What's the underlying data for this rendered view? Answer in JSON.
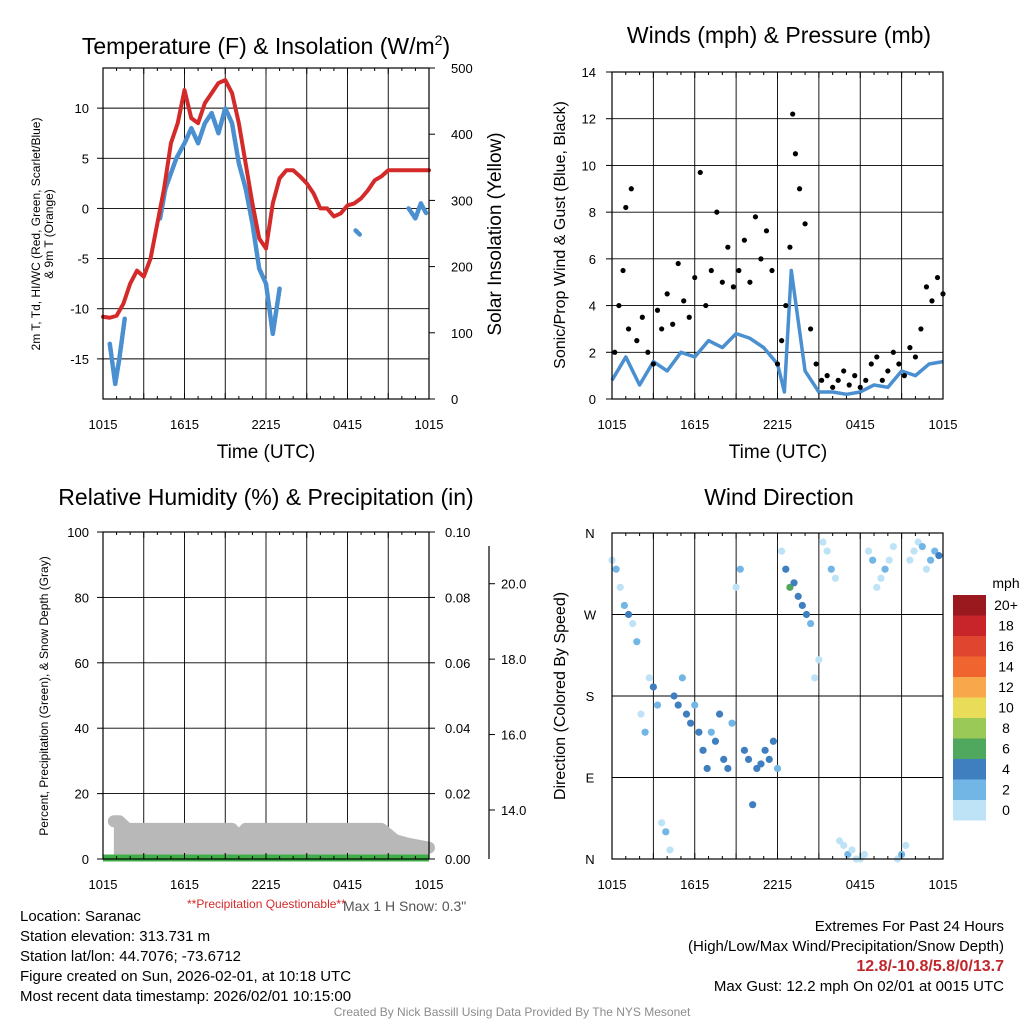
{
  "colors": {
    "temp": "#d42a2a",
    "wind": "#4a8fd0",
    "gust": "#000000",
    "precip": "#3fae49",
    "snow": "#b8b8b8",
    "grid": "#000000"
  },
  "panels": {
    "temp": {
      "title_main": "Temperature (F) & Insolation (W/m",
      "title_sup": "2",
      "title_end": ")",
      "ylabel_line1": "2m T, Td, HI/WC (Red, Green, Scarlet/Blue)",
      "ylabel_line2": "& 9m T (Orange)",
      "y2label": "Solar Insolation (Yellow)",
      "xlabel": "Time (UTC)"
    },
    "wind": {
      "title": "Winds (mph) & Pressure (mb)",
      "ylabel": "Sonic/Prop Wind & Gust (Blue, Black)",
      "xlabel": "Time (UTC)"
    },
    "rh": {
      "title": "Relative Humidity (%) & Precipitation (in)",
      "ylabel": "Percent, Precipitation (Green), & Snow Depth (Gray)",
      "note_questionable": "**Precipitation Questionable**",
      "note_snow": "Max 1 H Snow: 0.3\""
    },
    "dir": {
      "title": "Wind Direction",
      "ylabel": "Direction (Colored By Speed)",
      "colorbar_title": "mph",
      "colorbar_labels": [
        "20+",
        "18",
        "16",
        "14",
        "12",
        "10",
        "8",
        "6",
        "4",
        "2",
        "0"
      ],
      "colorbar_colors": [
        "#99191f",
        "#c8252b",
        "#e0452f",
        "#f0652f",
        "#f8a84a",
        "#e8dc58",
        "#9bc957",
        "#4fa85e",
        "#3f7fbf",
        "#72b6e6",
        "#bfe3f6"
      ]
    }
  },
  "info": {
    "location": "Location: Saranac",
    "elevation": "Station elevation: 313.731 m",
    "latlon": "Station lat/lon: 44.7076; -73.6712",
    "created": "Figure created on Sun, 2026-02-01, at 10:18 UTC",
    "recent": "Most recent data timestamp: 2026/02/01 10:15:00",
    "extremes_title": "Extremes For Past 24 Hours",
    "extremes_desc": "(High/Low/Max Wind/Precipitation/Snow Depth)",
    "extremes_values": "12.8/-10.8/5.8/0/13.7",
    "max_gust": "Max Gust: 12.2 mph On 02/01 at 0015 UTC",
    "credit": "Created By Nick Bassill Using Data Provided By The NYS Mesonet"
  },
  "chart_data": [
    {
      "type": "line",
      "title": "Temperature (F) & Insolation (W/m2)",
      "xlabel": "Time (UTC)",
      "xticks": [
        "1015",
        "1615",
        "2215",
        "0415",
        "1015"
      ],
      "x_hours": [
        0,
        6,
        12,
        18,
        24
      ],
      "ylim": [
        -19,
        14
      ],
      "yticks": [
        -15,
        -10,
        -5,
        0,
        5,
        10
      ],
      "y2lim": [
        0,
        500
      ],
      "y2ticks": [
        0,
        100,
        200,
        300,
        400,
        500
      ],
      "series": [
        {
          "name": "2m T",
          "color": "#d42a2a",
          "x": [
            0,
            0.5,
            1,
            1.5,
            2,
            2.5,
            3,
            3.5,
            4,
            4.5,
            5,
            5.5,
            6,
            6.5,
            7,
            7.5,
            8,
            8.5,
            9,
            9.5,
            10,
            10.5,
            11,
            11.5,
            12,
            12.5,
            13,
            13.5,
            14,
            14.5,
            15,
            15.5,
            16,
            16.5,
            17,
            17.5,
            18,
            18.5,
            19,
            19.5,
            20,
            20.5,
            21,
            21.5,
            22,
            22.5,
            23,
            23.5,
            24
          ],
          "y": [
            -10.8,
            -10.9,
            -10.7,
            -9.5,
            -7.5,
            -6.2,
            -6.8,
            -5.0,
            -1.5,
            2.0,
            6.5,
            8.5,
            11.8,
            9.0,
            8.5,
            10.5,
            11.5,
            12.5,
            12.8,
            11.5,
            8.5,
            4.5,
            0.5,
            -3.0,
            -4.0,
            0.5,
            3.0,
            3.8,
            3.8,
            3.2,
            2.5,
            1.5,
            0.0,
            0.0,
            -0.8,
            -0.5,
            0.3,
            0.5,
            1.0,
            1.8,
            2.8,
            3.2,
            3.8,
            3.8,
            3.8,
            3.8,
            3.8,
            3.8,
            3.8
          ]
        },
        {
          "name": "HI/WC (Blue)",
          "color": "#4a8fd0",
          "segments": [
            {
              "x": [
                0.5,
                0.9,
                1.2,
                1.6
              ],
              "y": [
                -13.5,
                -17.5,
                -15.0,
                -11.0
              ]
            },
            {
              "x": [
                4.2,
                4.6,
                5.0,
                5.4,
                6.0,
                6.5,
                7.0,
                7.5,
                8.0,
                8.5,
                9.0,
                9.5,
                10.0,
                10.5,
                11.0,
                11.5,
                12.0,
                12.5,
                13.0
              ],
              "y": [
                -1.0,
                2.0,
                3.5,
                5.0,
                6.5,
                8.0,
                6.5,
                8.5,
                9.5,
                7.5,
                10.0,
                8.5,
                4.5,
                2.0,
                -1.5,
                -6.0,
                -7.5,
                -12.5,
                -8.0
              ]
            },
            {
              "x": [
                18.6,
                18.9
              ],
              "y": [
                -2.2,
                -2.6
              ]
            },
            {
              "x": [
                22.5,
                23.0,
                23.4,
                23.8
              ],
              "y": [
                0.0,
                -1.0,
                0.5,
                -0.5
              ]
            }
          ]
        }
      ]
    },
    {
      "type": "scatter",
      "title": "Winds (mph) & Pressure (mb)",
      "xlabel": "Time (UTC)",
      "ylabel": "Sonic/Prop Wind & Gust (Blue, Black)",
      "xticks": [
        "1015",
        "1615",
        "2215",
        "0415",
        "1015"
      ],
      "x_hours": [
        0,
        6,
        12,
        18,
        24
      ],
      "ylim": [
        0,
        14
      ],
      "yticks": [
        0,
        2,
        4,
        6,
        8,
        10,
        12,
        14
      ],
      "series": [
        {
          "name": "Wind (Blue)",
          "color": "#4a8fd0",
          "x": [
            0,
            1,
            2,
            3,
            4,
            5,
            6,
            7,
            8,
            9,
            10,
            11,
            12,
            12.5,
            13,
            14,
            15,
            16,
            17,
            18,
            19,
            20,
            21,
            22,
            23,
            24
          ],
          "y": [
            0.8,
            1.8,
            0.6,
            1.6,
            1.2,
            2.0,
            1.8,
            2.5,
            2.2,
            2.8,
            2.6,
            2.2,
            1.5,
            0.3,
            5.5,
            1.2,
            0.3,
            0.3,
            0.2,
            0.3,
            0.6,
            0.5,
            1.2,
            1.0,
            1.5,
            1.6
          ]
        },
        {
          "name": "Gust (Black)",
          "color": "#000000",
          "x": [
            0.2,
            0.5,
            0.8,
            1.0,
            1.2,
            1.4,
            1.8,
            2.2,
            2.6,
            3.0,
            3.3,
            3.6,
            4.0,
            4.4,
            4.8,
            5.2,
            5.6,
            6.0,
            6.4,
            6.8,
            7.2,
            7.6,
            8.0,
            8.4,
            8.8,
            9.2,
            9.6,
            10.0,
            10.4,
            10.8,
            11.2,
            11.6,
            12.0,
            12.3,
            12.6,
            12.9,
            13.1,
            13.3,
            13.6,
            14.0,
            14.4,
            14.8,
            15.2,
            15.6,
            16.0,
            16.4,
            16.8,
            17.2,
            17.6,
            18.0,
            18.4,
            18.8,
            19.2,
            19.6,
            20.0,
            20.4,
            20.8,
            21.2,
            21.6,
            22.0,
            22.4,
            22.8,
            23.2,
            23.6,
            24.0
          ],
          "y": [
            2.0,
            4.0,
            5.5,
            8.2,
            3.0,
            9.0,
            2.5,
            3.5,
            2.0,
            1.5,
            3.8,
            3.0,
            4.5,
            3.2,
            5.8,
            4.2,
            3.5,
            5.2,
            9.7,
            4.0,
            5.5,
            8.0,
            5.0,
            6.5,
            4.8,
            5.5,
            6.8,
            5.0,
            7.8,
            6.0,
            7.2,
            5.5,
            1.5,
            2.5,
            4.0,
            6.5,
            12.2,
            10.5,
            9.0,
            7.5,
            3.0,
            1.5,
            0.8,
            1.0,
            0.5,
            0.8,
            1.2,
            0.6,
            1.0,
            0.5,
            0.8,
            1.5,
            1.8,
            0.8,
            1.2,
            2.0,
            1.5,
            1.0,
            2.2,
            1.8,
            3.0,
            4.8,
            4.2,
            5.2,
            4.5
          ]
        }
      ]
    },
    {
      "type": "area",
      "title": "Relative Humidity (%) & Precipitation (in)",
      "xticks": [
        "1015",
        "1615",
        "2215",
        "0415",
        "1015"
      ],
      "x_hours": [
        0,
        6,
        12,
        18,
        24
      ],
      "ylim": [
        0,
        100
      ],
      "yticks": [
        0,
        20,
        40,
        60,
        80,
        100
      ],
      "y2lim": [
        0,
        0.1
      ],
      "y2ticks": [
        "0.00",
        "0.02",
        "0.04",
        "0.06",
        "0.08",
        "0.10"
      ],
      "y3ticks": [
        "14.0",
        "16.0",
        "18.0",
        "20.0"
      ],
      "series": [
        {
          "name": "Precipitation (Green)",
          "color": "#3fae49",
          "x": [
            0,
            24
          ],
          "y": [
            0.0,
            0.0
          ]
        },
        {
          "name": "Snow Depth (Gray)",
          "color": "#b8b8b8",
          "x": [
            0.8,
            1.2,
            1.8,
            2.5,
            9.5,
            10.0,
            10.5,
            11.0,
            20.5,
            21.5,
            22.5,
            24.0
          ],
          "y": [
            13.7,
            13.7,
            13.5,
            13.5,
            13.5,
            13.3,
            13.5,
            13.5,
            13.5,
            13.2,
            13.1,
            13.0
          ]
        }
      ]
    },
    {
      "type": "scatter",
      "title": "Wind Direction",
      "ylabel": "Direction (Colored By Speed)",
      "xticks": [
        "1015",
        "1615",
        "2215",
        "0415",
        "1015"
      ],
      "x_hours": [
        0,
        6,
        12,
        18,
        24
      ],
      "yticks": [
        "N",
        "E",
        "S",
        "W",
        "N"
      ],
      "ylim": [
        0,
        360
      ],
      "series": [
        {
          "name": "Direction",
          "x": [
            0,
            0.3,
            0.6,
            0.9,
            1.2,
            1.5,
            1.8,
            2.1,
            2.4,
            2.7,
            3.0,
            3.3,
            3.6,
            3.9,
            4.2,
            4.5,
            4.8,
            5.1,
            5.4,
            5.7,
            6.0,
            6.3,
            6.6,
            6.9,
            7.2,
            7.5,
            7.8,
            8.1,
            8.4,
            8.7,
            9.0,
            9.3,
            9.6,
            9.9,
            10.2,
            10.5,
            10.8,
            11.1,
            11.4,
            11.7,
            12.0,
            12.3,
            12.6,
            12.9,
            13.2,
            13.5,
            13.8,
            14.1,
            14.4,
            14.7,
            15.0,
            15.3,
            15.6,
            15.9,
            16.2,
            16.5,
            16.8,
            17.1,
            17.4,
            17.7,
            18.0,
            18.3,
            18.6,
            18.9,
            19.2,
            19.5,
            19.8,
            20.1,
            20.4,
            20.7,
            21.0,
            21.3,
            21.6,
            21.9,
            22.2,
            22.5,
            22.8,
            23.1,
            23.4,
            23.7
          ],
          "y": [
            330,
            320,
            300,
            280,
            270,
            260,
            240,
            160,
            140,
            200,
            190,
            170,
            40,
            30,
            10,
            180,
            170,
            200,
            160,
            150,
            170,
            140,
            120,
            100,
            140,
            130,
            160,
            110,
            100,
            150,
            300,
            320,
            120,
            110,
            60,
            100,
            105,
            120,
            110,
            130,
            100,
            340,
            320,
            300,
            305,
            290,
            280,
            270,
            260,
            200,
            220,
            350,
            340,
            320,
            310,
            20,
            15,
            5,
            10,
            0,
            0,
            5,
            340,
            330,
            300,
            310,
            320,
            330,
            345,
            0,
            5,
            15,
            330,
            340,
            350,
            345,
            320,
            330,
            340,
            335
          ],
          "speed": [
            1,
            2,
            1,
            2,
            3,
            1,
            2,
            1,
            2,
            1,
            3,
            2,
            1,
            2,
            1,
            4,
            3,
            2,
            3,
            4,
            2,
            3,
            4,
            3,
            2,
            3,
            4,
            4,
            3,
            2,
            1,
            2,
            4,
            3,
            3,
            4,
            4,
            3,
            4,
            3,
            2,
            1,
            3,
            6,
            4,
            4,
            3,
            4,
            2,
            1,
            1,
            1,
            1,
            2,
            1,
            1,
            1,
            2,
            1,
            1,
            1,
            1,
            1,
            2,
            1,
            1,
            2,
            1,
            1,
            1,
            2,
            1,
            1,
            1,
            1,
            2,
            1,
            2,
            2,
            3
          ]
        }
      ]
    }
  ]
}
